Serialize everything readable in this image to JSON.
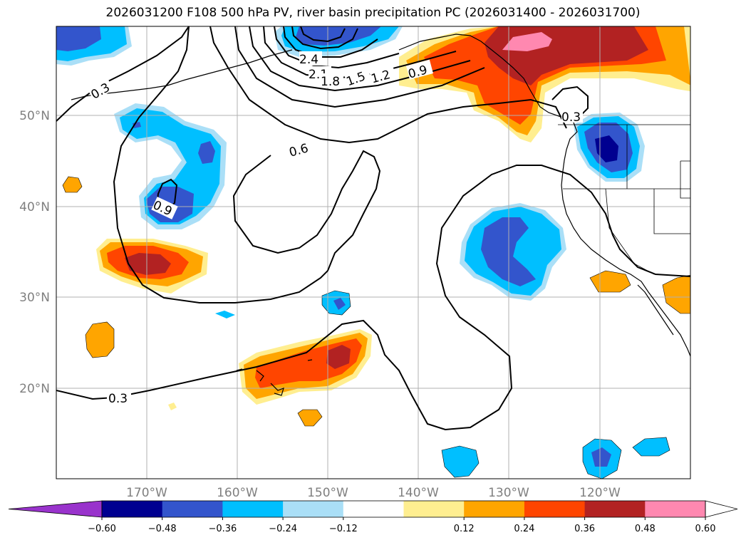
{
  "title": "2026031200 F108 500 hPa PV, river basin precipitation PC (2026031400 - 2026031700)",
  "lat_labels": [
    "50°N",
    "40°N",
    "30°N",
    "20°N"
  ],
  "lon_labels": [
    "170°W",
    "160°W",
    "150°W",
    "140°W",
    "130°W",
    "120°W"
  ],
  "contour_labels": [
    "0.3",
    "2.4",
    "2.1",
    "1.8",
    "1.5",
    "1.2",
    "0.9",
    "0.6",
    "0.9",
    "0.3",
    "0.3"
  ],
  "colorbar": {
    "ticks": [
      "−0.60",
      "−0.48",
      "−0.36",
      "−0.24",
      "−0.12",
      "0.12",
      "0.24",
      "0.36",
      "0.48",
      "0.60"
    ],
    "colors": [
      "#9933cc",
      "#000090",
      "#3355cc",
      "#00bfff",
      "#aadff7",
      "#ffffff",
      "#ffee90",
      "#ffa500",
      "#ff4500",
      "#b22222",
      "#ff88b0",
      "#ffffff"
    ]
  }
}
